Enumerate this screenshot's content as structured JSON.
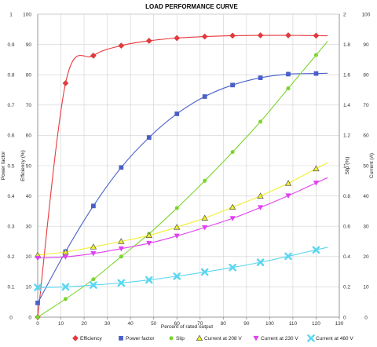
{
  "chart_data": {
    "type": "line",
    "title": "LOAD PERFORMANCE CURVE",
    "xlabel": "Percent of rated output",
    "xlim": [
      0,
      130
    ],
    "x_ticks": [
      0,
      10,
      20,
      30,
      40,
      50,
      60,
      70,
      80,
      90,
      100,
      110,
      120,
      130
    ],
    "grid": true,
    "legend_position": "bottom",
    "axes": [
      {
        "id": "left_outer",
        "label": "Power factor",
        "range": [
          0,
          1
        ],
        "ticks": [
          "0",
          "0.1",
          "0.2",
          "0.3",
          "0.4",
          "0.5",
          "0.6",
          "0.7",
          "0.8",
          "0.9",
          "1"
        ]
      },
      {
        "id": "left_inner",
        "label": "Efficiency (%)",
        "range": [
          0,
          100
        ],
        "ticks": [
          "0",
          "10",
          "20",
          "30",
          "40",
          "50",
          "60",
          "70",
          "80",
          "90",
          "100"
        ]
      },
      {
        "id": "right_inner",
        "label": "Slip (%)",
        "range": [
          0,
          2
        ],
        "ticks": [
          "0",
          "0.2",
          "0.4",
          "0.6",
          "0.8",
          "1",
          "1.2",
          "1.4",
          "1.6",
          "1.8",
          "2"
        ]
      },
      {
        "id": "right_outer",
        "label": "Current (A)",
        "range": [
          0,
          100
        ],
        "ticks": [
          "0",
          "10",
          "20",
          "30",
          "40",
          "50",
          "60",
          "70",
          "80",
          "90",
          "100"
        ]
      }
    ],
    "series": [
      {
        "name": "Efficiency",
        "axis": "left_inner",
        "color": "#e8383d",
        "marker": "diamond",
        "x": [
          0,
          12,
          24,
          36,
          48,
          60,
          72,
          84,
          96,
          108,
          120
        ],
        "y": [
          0,
          77.2,
          86.3,
          89.6,
          91.2,
          92.1,
          92.6,
          92.9,
          93.0,
          93.0,
          92.9
        ]
      },
      {
        "name": "Power factor",
        "axis": "left_outer",
        "color": "#4a5fc8",
        "marker": "square",
        "x": [
          0,
          12,
          24,
          36,
          48,
          60,
          72,
          84,
          96,
          108,
          120
        ],
        "y": [
          0.047,
          0.216,
          0.367,
          0.494,
          0.593,
          0.671,
          0.728,
          0.766,
          0.79,
          0.802,
          0.804
        ]
      },
      {
        "name": "Slip",
        "axis": "right_inner",
        "color": "#7cd430",
        "marker": "circle",
        "x": [
          0,
          12,
          24,
          36,
          48,
          60,
          72,
          84,
          96,
          108,
          120
        ],
        "y": [
          0.0,
          0.12,
          0.25,
          0.4,
          0.55,
          0.72,
          0.9,
          1.09,
          1.29,
          1.51,
          1.73
        ]
      },
      {
        "name": "Current at 208 V",
        "axis": "right_outer",
        "color": "#f0f030",
        "marker": "triangle",
        "x": [
          0,
          12,
          24,
          36,
          48,
          60,
          72,
          84,
          96,
          108,
          120
        ],
        "y": [
          20.5,
          21.5,
          23.2,
          25.0,
          27.0,
          29.7,
          32.7,
          36.3,
          40.0,
          44.2,
          49.0
        ]
      },
      {
        "name": "Current at 230 V",
        "axis": "right_outer",
        "color": "#e040f0",
        "marker": "triangle-down",
        "x": [
          0,
          12,
          24,
          36,
          48,
          60,
          72,
          84,
          96,
          108,
          120
        ],
        "y": [
          19.5,
          19.9,
          21.0,
          22.6,
          24.4,
          26.8,
          29.6,
          32.6,
          36.2,
          40.1,
          44.3
        ]
      },
      {
        "name": "Current at 460 V",
        "axis": "right_outer",
        "color": "#5ad6f0",
        "marker": "cross",
        "x": [
          0,
          12,
          24,
          36,
          48,
          60,
          72,
          84,
          96,
          108,
          120
        ],
        "y": [
          9.8,
          10.0,
          10.6,
          11.3,
          12.3,
          13.5,
          14.9,
          16.4,
          18.1,
          20.1,
          22.2
        ]
      }
    ]
  }
}
